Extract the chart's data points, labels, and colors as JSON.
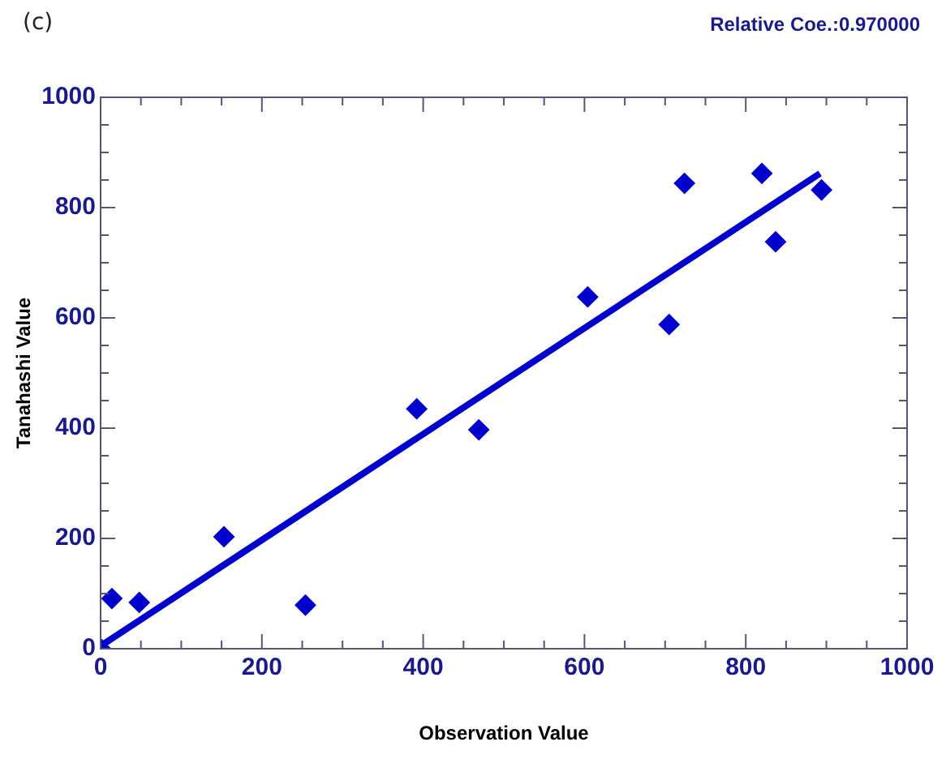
{
  "chart_data": {
    "type": "scatter",
    "title": "(c)",
    "xlabel": "Observation Value",
    "ylabel": "Tanahashi Value",
    "annotations": [
      "Relative Coe.:0.970000"
    ],
    "marker": "diamond",
    "grid": false,
    "legend": false,
    "xlim": [
      0,
      1000
    ],
    "ylim": [
      0,
      1000
    ],
    "xticks": [
      0,
      {
        "value": 50,
        "label": null
      },
      {
        "value": 100,
        "label": null
      },
      {
        "value": 150,
        "label": null
      },
      200,
      {
        "value": 250,
        "label": null
      },
      {
        "value": 300,
        "label": null
      },
      {
        "value": 350,
        "label": null
      },
      400,
      {
        "value": 450,
        "label": null
      },
      {
        "value": 500,
        "label": null
      },
      {
        "value": 550,
        "label": null
      },
      600,
      {
        "value": 650,
        "label": null
      },
      {
        "value": 700,
        "label": null
      },
      {
        "value": 750,
        "label": null
      },
      800,
      {
        "value": 850,
        "label": null
      },
      {
        "value": 900,
        "label": null
      },
      {
        "value": 950,
        "label": null
      },
      1000
    ],
    "yticks": [
      0,
      {
        "value": 50,
        "label": null
      },
      {
        "value": 100,
        "label": null
      },
      {
        "value": 150,
        "label": null
      },
      200,
      {
        "value": 250,
        "label": null
      },
      {
        "value": 300,
        "label": null
      },
      {
        "value": 350,
        "label": null
      },
      400,
      {
        "value": 450,
        "label": null
      },
      {
        "value": 500,
        "label": null
      },
      {
        "value": 550,
        "label": null
      },
      600,
      {
        "value": 650,
        "label": null
      },
      {
        "value": 700,
        "label": null
      },
      {
        "value": 750,
        "label": null
      },
      800,
      {
        "value": 850,
        "label": null
      },
      {
        "value": 900,
        "label": null
      },
      {
        "value": 950,
        "label": null
      },
      1000
    ],
    "series": [
      {
        "color": "#0000cc",
        "x": [
          0,
          14,
          48,
          153,
          254,
          392,
          469,
          604,
          705,
          724,
          820,
          837,
          894
        ],
        "values": [
          0,
          91,
          84,
          203,
          79,
          435,
          397,
          638,
          588,
          844,
          862,
          738,
          832
        ]
      },
      {
        "type": "line",
        "color": "#0000cc",
        "marker": "none",
        "x": [
          0,
          892
        ],
        "values": [
          5,
          862
        ]
      }
    ]
  }
}
